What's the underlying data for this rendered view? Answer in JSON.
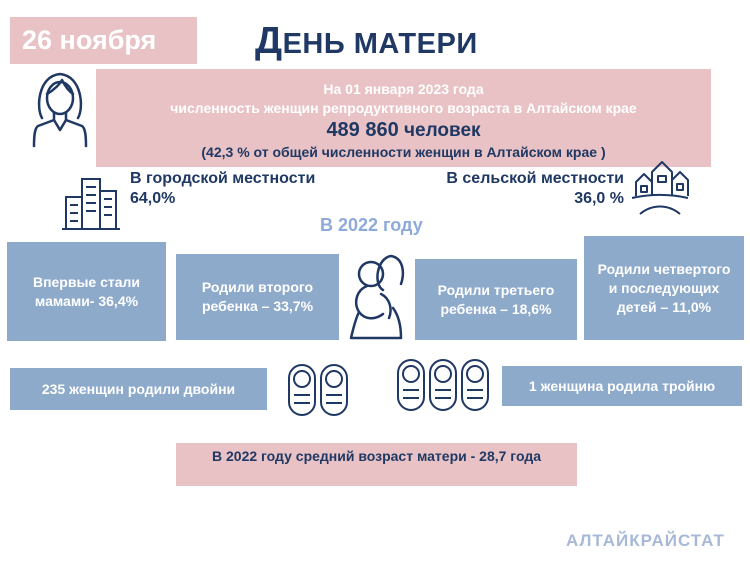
{
  "header": {
    "date": "26 ноября",
    "title_first": "Д",
    "title_rest": "ЕНЬ МАТЕРИ"
  },
  "summary": {
    "line1": "На 01 января 2023 года",
    "line2": "численность женщин репродуктивного возраста в Алтайском крае",
    "count_number": "489 860",
    "count_unit": "человек",
    "share": "(42,3 % от общей численности женщин в Алтайском крае )"
  },
  "urban": {
    "label": "В городской местности",
    "value": "64,0%"
  },
  "rural": {
    "label": "В сельской местности",
    "value": "36,0 %"
  },
  "year_label": "В 2022 году",
  "births": [
    {
      "text": "Впервые стали мамами- 36,4%"
    },
    {
      "text": "Родили второго ребенка – 33,7%"
    },
    {
      "text": "Родили третьего ребенка – 18,6%"
    },
    {
      "text": "Родили четвертого и последующих детей – 11,0%"
    }
  ],
  "twins": "235 женщин родили двойни",
  "triplets": "1 женщина родила тройню",
  "mother_age": "В 2022 году средний возраст матери  - 28,7 года",
  "brand": "АЛТАЙКРАЙСТАТ",
  "colors": {
    "pink": "#e8c2c5",
    "blue": "#8eaacb",
    "navy": "#1f3864"
  },
  "icons": [
    "woman-icon",
    "city-buildings-icon",
    "village-icon",
    "mother-child-icon",
    "twin-babies-icon",
    "triplet-babies-icon"
  ]
}
